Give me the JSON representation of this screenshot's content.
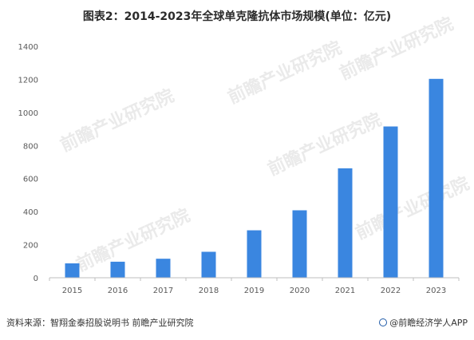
{
  "title": "图表2：2014-2023年全球单克隆抗体市场规模(单位：亿元)",
  "watermark": "前瞻产业研究院",
  "footer": {
    "source": "资料来源：智翔金泰招股说明书 前瞻产业研究院",
    "brand": "@前瞻经济学人APP"
  },
  "colors": {
    "bar": "#3a86e0",
    "axis": "#bfbfbf",
    "brand": "#1f5aa8"
  },
  "chart_data": {
    "type": "bar",
    "categories": [
      "2015",
      "2016",
      "2017",
      "2018",
      "2019",
      "2020",
      "2021",
      "2022",
      "2023"
    ],
    "values": [
      87,
      97,
      115,
      157,
      287,
      408,
      662,
      915,
      1203
    ],
    "ylim": [
      0,
      1400
    ],
    "yticks": [
      0,
      200,
      400,
      600,
      800,
      1000,
      1200,
      1400
    ],
    "grid": false,
    "legend": "none"
  }
}
